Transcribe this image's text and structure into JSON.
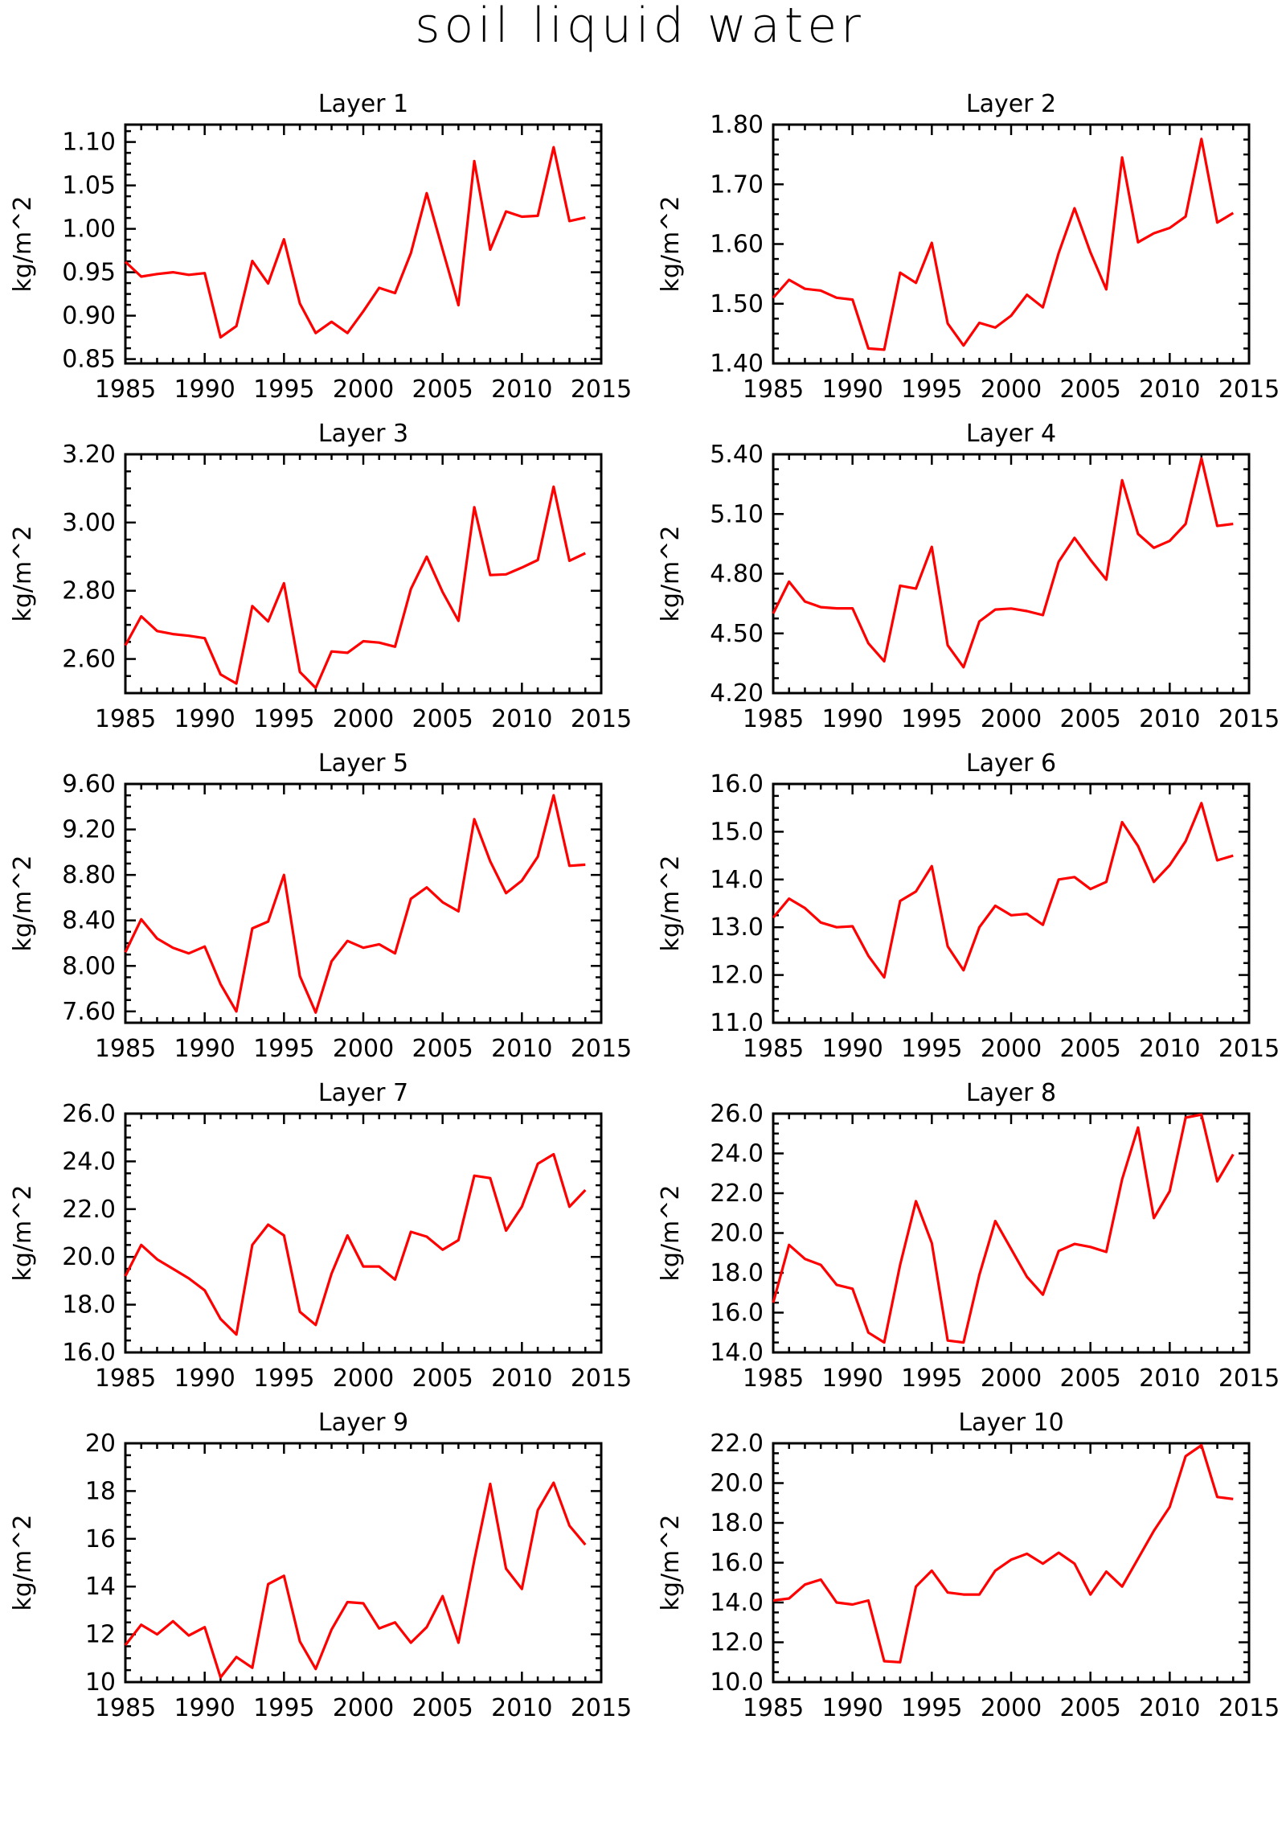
{
  "title": "soil liquid water",
  "footer": "",
  "colors": {
    "series": "#ff0000",
    "axes": "#000000",
    "background": "#ffffff"
  },
  "chart_data": [
    {
      "type": "line",
      "title": "Layer 1",
      "ylabel": "kg/m^2",
      "xlim": [
        1985,
        2015
      ],
      "xticks": [
        1985,
        1990,
        1995,
        2000,
        2005,
        2010,
        2015
      ],
      "ylim": [
        0.845,
        1.12
      ],
      "yticks": [
        0.85,
        0.9,
        0.95,
        1.0,
        1.05,
        1.1
      ],
      "ytick_labels": [
        "0.85",
        "0.90",
        "0.95",
        "1.00",
        "1.05",
        "1.10"
      ],
      "series": [
        {
          "x": [
            1985,
            1986,
            1987,
            1988,
            1989,
            1990,
            1991,
            1992,
            1993,
            1994,
            1995,
            1996,
            1997,
            1998,
            1999,
            2000,
            2001,
            2002,
            2003,
            2004,
            2005,
            2006,
            2007,
            2008,
            2009,
            2010,
            2011,
            2012,
            2013,
            2014
          ],
          "values": [
            0.962,
            0.945,
            0.948,
            0.95,
            0.947,
            0.949,
            0.875,
            0.888,
            0.963,
            0.937,
            0.988,
            0.914,
            0.88,
            0.893,
            0.88,
            0.905,
            0.932,
            0.926,
            0.972,
            1.041,
            0.976,
            0.912,
            1.078,
            0.976,
            1.02,
            1.014,
            1.015,
            1.094,
            1.009,
            1.013
          ]
        }
      ]
    },
    {
      "type": "line",
      "title": "Layer 2",
      "ylabel": "kg/m^2",
      "xlim": [
        1985,
        2015
      ],
      "xticks": [
        1985,
        1990,
        1995,
        2000,
        2005,
        2010,
        2015
      ],
      "ylim": [
        1.4,
        1.8
      ],
      "yticks": [
        1.4,
        1.5,
        1.6,
        1.7,
        1.8
      ],
      "ytick_labels": [
        "1.40",
        "1.50",
        "1.60",
        "1.70",
        "1.80"
      ],
      "series": [
        {
          "x": [
            1985,
            1986,
            1987,
            1988,
            1989,
            1990,
            1991,
            1992,
            1993,
            1994,
            1995,
            1996,
            1997,
            1998,
            1999,
            2000,
            2001,
            2002,
            2003,
            2004,
            2005,
            2006,
            2007,
            2008,
            2009,
            2010,
            2011,
            2012,
            2013,
            2014
          ],
          "values": [
            1.51,
            1.54,
            1.525,
            1.522,
            1.51,
            1.507,
            1.425,
            1.423,
            1.552,
            1.535,
            1.602,
            1.467,
            1.43,
            1.468,
            1.46,
            1.48,
            1.515,
            1.494,
            1.585,
            1.66,
            1.586,
            1.524,
            1.745,
            1.603,
            1.618,
            1.627,
            1.646,
            1.776,
            1.636,
            1.652
          ]
        }
      ]
    },
    {
      "type": "line",
      "title": "Layer 3",
      "ylabel": "kg/m^2",
      "xlim": [
        1985,
        2015
      ],
      "xticks": [
        1985,
        1990,
        1995,
        2000,
        2005,
        2010,
        2015
      ],
      "ylim": [
        2.5,
        3.2
      ],
      "yticks": [
        2.6,
        2.8,
        3.0,
        3.2
      ],
      "ytick_labels": [
        "2.60",
        "2.80",
        "3.00",
        "3.20"
      ],
      "series": [
        {
          "x": [
            1985,
            1986,
            1987,
            1988,
            1989,
            1990,
            1991,
            1992,
            1993,
            1994,
            1995,
            1996,
            1997,
            1998,
            1999,
            2000,
            2001,
            2002,
            2003,
            2004,
            2005,
            2006,
            2007,
            2008,
            2009,
            2010,
            2011,
            2012,
            2013,
            2014
          ],
          "values": [
            2.64,
            2.725,
            2.682,
            2.673,
            2.668,
            2.661,
            2.555,
            2.528,
            2.755,
            2.71,
            2.822,
            2.562,
            2.515,
            2.622,
            2.618,
            2.652,
            2.648,
            2.636,
            2.805,
            2.9,
            2.796,
            2.712,
            3.045,
            2.846,
            2.848,
            2.868,
            2.89,
            3.105,
            2.888,
            2.91
          ]
        }
      ]
    },
    {
      "type": "line",
      "title": "Layer 4",
      "ylabel": "kg/m^2",
      "xlim": [
        1985,
        2015
      ],
      "xticks": [
        1985,
        1990,
        1995,
        2000,
        2005,
        2010,
        2015
      ],
      "ylim": [
        4.2,
        5.4
      ],
      "yticks": [
        4.2,
        4.5,
        4.8,
        5.1,
        5.4
      ],
      "ytick_labels": [
        "4.20",
        "4.50",
        "4.80",
        "5.10",
        "5.40"
      ],
      "series": [
        {
          "x": [
            1985,
            1986,
            1987,
            1988,
            1989,
            1990,
            1991,
            1992,
            1993,
            1994,
            1995,
            1996,
            1997,
            1998,
            1999,
            2000,
            2001,
            2002,
            2003,
            2004,
            2005,
            2006,
            2007,
            2008,
            2009,
            2010,
            2011,
            2012,
            2013,
            2014
          ],
          "values": [
            4.6,
            4.76,
            4.66,
            4.632,
            4.626,
            4.626,
            4.45,
            4.36,
            4.74,
            4.725,
            4.935,
            4.44,
            4.33,
            4.56,
            4.62,
            4.625,
            4.612,
            4.592,
            4.86,
            4.98,
            4.87,
            4.77,
            5.27,
            5.0,
            4.93,
            4.965,
            5.05,
            5.38,
            5.04,
            5.05
          ]
        }
      ]
    },
    {
      "type": "line",
      "title": "Layer 5",
      "ylabel": "kg/m^2",
      "xlim": [
        1985,
        2015
      ],
      "xticks": [
        1985,
        1990,
        1995,
        2000,
        2005,
        2010,
        2015
      ],
      "ylim": [
        7.5,
        9.6
      ],
      "yticks": [
        7.6,
        8.0,
        8.4,
        8.8,
        9.2,
        9.6
      ],
      "ytick_labels": [
        "7.60",
        "8.00",
        "8.40",
        "8.80",
        "9.20",
        "9.60"
      ],
      "series": [
        {
          "x": [
            1985,
            1986,
            1987,
            1988,
            1989,
            1990,
            1991,
            1992,
            1993,
            1994,
            1995,
            1996,
            1997,
            1998,
            1999,
            2000,
            2001,
            2002,
            2003,
            2004,
            2005,
            2006,
            2007,
            2008,
            2009,
            2010,
            2011,
            2012,
            2013,
            2014
          ],
          "values": [
            8.12,
            8.41,
            8.24,
            8.16,
            8.11,
            8.17,
            7.84,
            7.6,
            8.33,
            8.39,
            8.8,
            7.91,
            7.59,
            8.04,
            8.22,
            8.16,
            8.19,
            8.11,
            8.59,
            8.69,
            8.56,
            8.48,
            9.29,
            8.92,
            8.64,
            8.75,
            8.96,
            9.5,
            8.88,
            8.89
          ]
        }
      ]
    },
    {
      "type": "line",
      "title": "Layer 6",
      "ylabel": "kg/m^2",
      "xlim": [
        1985,
        2015
      ],
      "xticks": [
        1985,
        1990,
        1995,
        2000,
        2005,
        2010,
        2015
      ],
      "ylim": [
        11.0,
        16.0
      ],
      "yticks": [
        11.0,
        12.0,
        13.0,
        14.0,
        15.0,
        16.0
      ],
      "ytick_labels": [
        "11.0",
        "12.0",
        "13.0",
        "14.0",
        "15.0",
        "16.0"
      ],
      "series": [
        {
          "x": [
            1985,
            1986,
            1987,
            1988,
            1989,
            1990,
            1991,
            1992,
            1993,
            1994,
            1995,
            1996,
            1997,
            1998,
            1999,
            2000,
            2001,
            2002,
            2003,
            2004,
            2005,
            2006,
            2007,
            2008,
            2009,
            2010,
            2011,
            2012,
            2013,
            2014
          ],
          "values": [
            13.2,
            13.6,
            13.4,
            13.1,
            13.0,
            13.02,
            12.4,
            11.95,
            13.55,
            13.75,
            14.28,
            12.6,
            12.1,
            13.0,
            13.45,
            13.25,
            13.28,
            13.05,
            14.0,
            14.05,
            13.8,
            13.95,
            15.2,
            14.7,
            13.95,
            14.3,
            14.8,
            15.6,
            14.4,
            14.5
          ]
        }
      ]
    },
    {
      "type": "line",
      "title": "Layer 7",
      "ylabel": "kg/m^2",
      "xlim": [
        1985,
        2015
      ],
      "xticks": [
        1985,
        1990,
        1995,
        2000,
        2005,
        2010,
        2015
      ],
      "ylim": [
        16.0,
        26.0
      ],
      "yticks": [
        16.0,
        18.0,
        20.0,
        22.0,
        24.0,
        26.0
      ],
      "ytick_labels": [
        "16.0",
        "18.0",
        "20.0",
        "22.0",
        "24.0",
        "26.0"
      ],
      "series": [
        {
          "x": [
            1985,
            1986,
            1987,
            1988,
            1989,
            1990,
            1991,
            1992,
            1993,
            1994,
            1995,
            1996,
            1997,
            1998,
            1999,
            2000,
            2001,
            2002,
            2003,
            2004,
            2005,
            2006,
            2007,
            2008,
            2009,
            2010,
            2011,
            2012,
            2013,
            2014
          ],
          "values": [
            19.2,
            20.5,
            19.9,
            19.5,
            19.1,
            18.6,
            17.4,
            16.75,
            20.5,
            21.35,
            20.9,
            17.7,
            17.15,
            19.3,
            20.9,
            19.6,
            19.6,
            19.05,
            21.05,
            20.85,
            20.3,
            20.7,
            23.4,
            23.3,
            21.1,
            22.1,
            23.9,
            24.3,
            22.1,
            22.8
          ]
        }
      ]
    },
    {
      "type": "line",
      "title": "Layer 8",
      "ylabel": "kg/m^2",
      "xlim": [
        1985,
        2015
      ],
      "xticks": [
        1985,
        1990,
        1995,
        2000,
        2005,
        2010,
        2015
      ],
      "ylim": [
        14.0,
        26.0
      ],
      "yticks": [
        14.0,
        16.0,
        18.0,
        20.0,
        22.0,
        24.0,
        26.0
      ],
      "ytick_labels": [
        "14.0",
        "16.0",
        "18.0",
        "20.0",
        "22.0",
        "24.0",
        "26.0"
      ],
      "series": [
        {
          "x": [
            1985,
            1986,
            1987,
            1988,
            1989,
            1990,
            1991,
            1992,
            1993,
            1994,
            1995,
            1996,
            1997,
            1998,
            1999,
            2000,
            2001,
            2002,
            2003,
            2004,
            2005,
            2006,
            2007,
            2008,
            2009,
            2010,
            2011,
            2012,
            2013,
            2014
          ],
          "values": [
            16.5,
            19.4,
            18.7,
            18.4,
            17.4,
            17.2,
            15.0,
            14.5,
            18.4,
            21.6,
            19.5,
            14.6,
            14.5,
            17.9,
            20.6,
            19.2,
            17.8,
            16.9,
            19.1,
            19.45,
            19.3,
            19.05,
            22.7,
            25.3,
            20.75,
            22.1,
            25.8,
            25.95,
            22.6,
            23.95
          ]
        }
      ]
    },
    {
      "type": "line",
      "title": "Layer 9",
      "ylabel": "kg/m^2",
      "xlim": [
        1985,
        2015
      ],
      "xticks": [
        1985,
        1990,
        1995,
        2000,
        2005,
        2010,
        2015
      ],
      "ylim": [
        10,
        20
      ],
      "yticks": [
        10,
        12,
        14,
        16,
        18,
        20
      ],
      "ytick_labels": [
        "10",
        "12",
        "14",
        "16",
        "18",
        "20"
      ],
      "series": [
        {
          "x": [
            1985,
            1986,
            1987,
            1988,
            1989,
            1990,
            1991,
            1992,
            1993,
            1994,
            1995,
            1996,
            1997,
            1998,
            1999,
            2000,
            2001,
            2002,
            2003,
            2004,
            2005,
            2006,
            2007,
            2008,
            2009,
            2010,
            2011,
            2012,
            2013,
            2014
          ],
          "values": [
            11.55,
            12.4,
            12.0,
            12.55,
            11.95,
            12.3,
            10.2,
            11.05,
            10.6,
            14.1,
            14.45,
            11.7,
            10.55,
            12.2,
            13.35,
            13.3,
            12.25,
            12.5,
            11.65,
            12.3,
            13.6,
            11.65,
            15.1,
            18.3,
            14.75,
            13.9,
            17.2,
            18.35,
            16.55,
            15.75
          ]
        }
      ]
    },
    {
      "type": "line",
      "title": "Layer 10",
      "ylabel": "kg/m^2",
      "xlim": [
        1985,
        2015
      ],
      "xticks": [
        1985,
        1990,
        1995,
        2000,
        2005,
        2010,
        2015
      ],
      "ylim": [
        10.0,
        22.0
      ],
      "yticks": [
        10.0,
        12.0,
        14.0,
        16.0,
        18.0,
        20.0,
        22.0
      ],
      "ytick_labels": [
        "10.0",
        "12.0",
        "14.0",
        "16.0",
        "18.0",
        "20.0",
        "22.0"
      ],
      "series": [
        {
          "x": [
            1985,
            1986,
            1987,
            1988,
            1989,
            1990,
            1991,
            1992,
            1993,
            1994,
            1995,
            1996,
            1997,
            1998,
            1999,
            2000,
            2001,
            2002,
            2003,
            2004,
            2005,
            2006,
            2007,
            2008,
            2009,
            2010,
            2011,
            2012,
            2013,
            2014
          ],
          "values": [
            14.1,
            14.2,
            14.9,
            15.15,
            14.0,
            13.9,
            14.1,
            11.05,
            11.0,
            14.8,
            15.6,
            14.5,
            14.4,
            14.4,
            15.6,
            16.15,
            16.45,
            15.95,
            16.5,
            15.95,
            14.4,
            15.55,
            14.8,
            16.2,
            17.6,
            18.8,
            21.35,
            21.9,
            19.3,
            19.2
          ]
        }
      ]
    }
  ]
}
